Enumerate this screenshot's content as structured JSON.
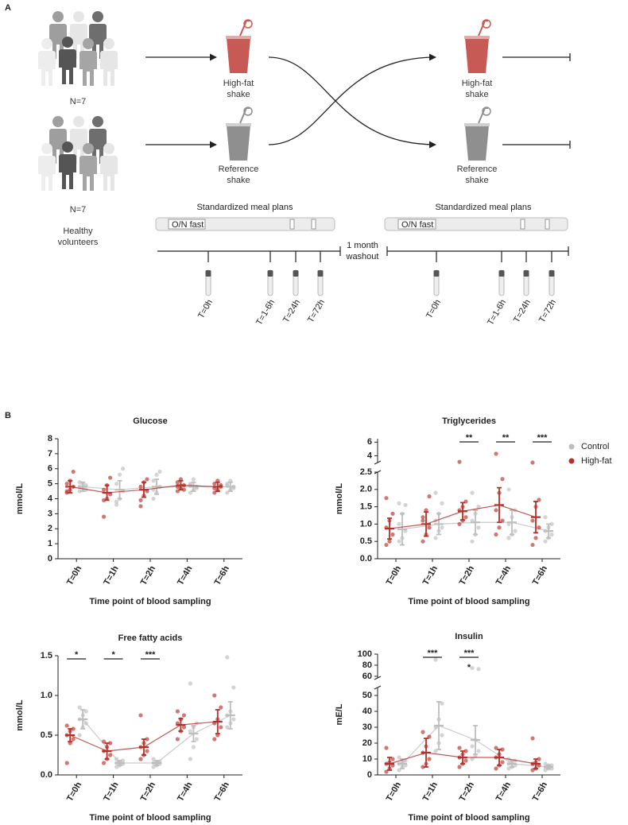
{
  "panel_a": {
    "label": "A",
    "group_size": [
      "N=7",
      "N=7"
    ],
    "population": "Healthy volunteers",
    "shakes": [
      "High-fat shake",
      "Reference shake",
      "High-fat shake",
      "Reference shake"
    ],
    "meal_plan_title": [
      "Standardized meal plans",
      "Standardized meal plans"
    ],
    "fast": [
      "O/N fast",
      "O/N fast"
    ],
    "washout": "1 month washout",
    "timepoints": [
      "T=0h",
      "T=1-6h",
      "T=24h",
      "T=72h",
      "T=0h",
      "T=1-6h",
      "T=24h",
      "T=72h"
    ]
  },
  "panel_b_label": "B",
  "chart_data": [
    {
      "type": "dot",
      "title": "Glucose",
      "ylabel": "mmol/L",
      "xlabel": "Time point of blood sampling",
      "categories": [
        "T=0h",
        "T=1h",
        "T=2h",
        "T=4h",
        "T=6h"
      ],
      "ylim": [
        0,
        8
      ],
      "yticks": [
        0,
        1,
        2,
        3,
        4,
        5,
        6,
        7,
        8
      ],
      "legend": false,
      "series": [
        {
          "name": "Control",
          "color": "#bdbdbd",
          "mean": [
            4.8,
            4.6,
            4.8,
            4.8,
            4.8
          ],
          "sd": [
            0.3,
            0.6,
            0.5,
            0.3,
            0.3
          ],
          "points": [
            [
              4.5,
              4.7,
              4.9,
              5.1,
              5.0,
              4.6,
              4.8
            ],
            [
              3.6,
              4.0,
              4.5,
              5.0,
              5.6,
              6.0,
              3.8
            ],
            [
              4.0,
              4.4,
              4.8,
              5.2,
              5.6,
              5.8,
              4.6
            ],
            [
              4.4,
              4.6,
              4.8,
              5.0,
              5.3,
              4.7,
              4.9
            ],
            [
              4.4,
              4.6,
              4.8,
              5.0,
              5.2,
              4.7,
              4.9
            ]
          ]
        },
        {
          "name": "High-fat",
          "color": "#b5302a",
          "mean": [
            4.8,
            4.4,
            4.6,
            4.9,
            4.8
          ],
          "sd": [
            0.4,
            0.5,
            0.5,
            0.3,
            0.3
          ],
          "points": [
            [
              4.4,
              4.6,
              4.8,
              5.0,
              5.2,
              5.8,
              4.5
            ],
            [
              2.8,
              4.0,
              4.3,
              4.6,
              4.9,
              5.4,
              3.9
            ],
            [
              3.9,
              4.2,
              4.5,
              4.8,
              5.1,
              5.3,
              3.5
            ],
            [
              4.5,
              4.7,
              4.9,
              5.1,
              5.3,
              4.6,
              4.8
            ],
            [
              4.4,
              4.6,
              4.8,
              5.0,
              5.2,
              4.9,
              4.7
            ]
          ]
        }
      ],
      "annotations": []
    },
    {
      "type": "dot",
      "title": "Triglycerides",
      "ylabel": "mmol/L",
      "xlabel": "Time point of blood sampling",
      "categories": [
        "T=0h",
        "T=1h",
        "T=2h",
        "T=4h",
        "T=6h"
      ],
      "ylim": [
        0,
        2.5
      ],
      "yticks": [
        {
          "value": 0,
          "label": "0.0"
        },
        0.5,
        {
          "value": 1,
          "label": "1.0"
        },
        1.5,
        {
          "value": 2,
          "label": "2.0"
        },
        2.5
      ],
      "ylim_upper": [
        3,
        6.5
      ],
      "yticks_upper": [
        4,
        6
      ],
      "legend": true,
      "legend_corner": "right",
      "series": [
        {
          "name": "Control",
          "color": "#bdbdbd",
          "mean": [
            0.85,
            1.0,
            1.05,
            1.05,
            0.8
          ],
          "sd": [
            0.45,
            0.3,
            0.35,
            0.35,
            0.2
          ],
          "points": [
            [
              0.5,
              0.6,
              0.8,
              1.0,
              1.3,
              1.55,
              1.6
            ],
            [
              0.6,
              0.8,
              0.9,
              1.1,
              1.3,
              1.6,
              1.9
            ],
            [
              0.5,
              0.7,
              0.9,
              1.1,
              1.3,
              1.5,
              1.9
            ],
            [
              0.6,
              0.7,
              0.8,
              1.0,
              1.2,
              1.4,
              2.0
            ],
            [
              0.5,
              0.6,
              0.7,
              0.8,
              0.9,
              1.0,
              1.2
            ]
          ]
        },
        {
          "name": "High-fat",
          "color": "#b5302a",
          "mean": [
            0.87,
            1.0,
            1.37,
            1.55,
            1.2
          ],
          "sd": [
            0.3,
            0.35,
            0.25,
            0.5,
            0.45
          ],
          "points": [
            [
              0.4,
              0.5,
              0.7,
              0.9,
              1.1,
              1.3,
              1.75
            ],
            [
              0.5,
              0.7,
              0.9,
              1.1,
              1.4,
              1.8,
              1.2
            ],
            [
              1.0,
              1.1,
              1.2,
              1.4,
              1.5,
              1.65,
              3.1
            ],
            [
              0.7,
              0.9,
              1.1,
              1.4,
              1.9,
              2.3,
              4.3
            ],
            [
              0.4,
              0.6,
              0.9,
              1.1,
              1.5,
              1.7,
              3.0
            ]
          ]
        }
      ],
      "annotations": [
        {
          "label": "**",
          "category": "T=2h"
        },
        {
          "label": "**",
          "category": "T=4h"
        },
        {
          "label": "***",
          "category": "T=6h"
        }
      ]
    },
    {
      "type": "dot",
      "title": "Free fatty acids",
      "ylabel": "mmol/L",
      "xlabel": "Time point of blood sampling",
      "categories": [
        "T=0h",
        "T=1h",
        "T=2h",
        "T=4h",
        "T=6h"
      ],
      "ylim": [
        0,
        1.5
      ],
      "yticks": [
        {
          "value": 0,
          "label": "0.0"
        },
        0.5,
        {
          "value": 1,
          "label": "1.0"
        },
        1.5
      ],
      "legend": false,
      "series": [
        {
          "name": "Control",
          "color": "#bdbdbd",
          "mean": [
            0.7,
            0.15,
            0.15,
            0.52,
            0.75
          ],
          "sd": [
            0.12,
            0.03,
            0.03,
            0.1,
            0.17
          ],
          "points": [
            [
              0.5,
              0.6,
              0.65,
              0.7,
              0.75,
              0.8,
              0.85
            ],
            [
              0.1,
              0.12,
              0.14,
              0.15,
              0.16,
              0.18,
              0.2
            ],
            [
              0.1,
              0.12,
              0.14,
              0.15,
              0.16,
              0.17,
              0.2
            ],
            [
              0.2,
              0.35,
              0.45,
              0.55,
              0.6,
              0.65,
              1.15
            ],
            [
              0.6,
              0.65,
              0.7,
              0.75,
              0.8,
              1.1,
              1.48
            ]
          ]
        },
        {
          "name": "High-fat",
          "color": "#b5302a",
          "mean": [
            0.5,
            0.3,
            0.35,
            0.63,
            0.67
          ],
          "sd": [
            0.08,
            0.1,
            0.1,
            0.08,
            0.15
          ],
          "points": [
            [
              0.15,
              0.4,
              0.45,
              0.5,
              0.55,
              0.58,
              0.62
            ],
            [
              0.15,
              0.2,
              0.25,
              0.3,
              0.35,
              0.4,
              0.42
            ],
            [
              0.2,
              0.25,
              0.3,
              0.35,
              0.4,
              0.45,
              0.75
            ],
            [
              0.45,
              0.55,
              0.6,
              0.65,
              0.7,
              0.75,
              0.8
            ],
            [
              0.45,
              0.5,
              0.6,
              0.65,
              0.7,
              0.85,
              1.0
            ]
          ]
        }
      ],
      "annotations": [
        {
          "label": "*",
          "category": "T=0h"
        },
        {
          "label": "*",
          "category": "T=1h"
        },
        {
          "label": "***",
          "category": "T=2h"
        }
      ]
    },
    {
      "type": "dot",
      "title": "Insulin",
      "ylabel": "mE/L",
      "xlabel": "Time point of blood sampling",
      "categories": [
        "T=0h",
        "T=1h",
        "T=2h",
        "T=4h",
        "T=6h"
      ],
      "ylim": [
        0,
        55
      ],
      "yticks": [
        0,
        10,
        20,
        30,
        40,
        50
      ],
      "ylim_upper": [
        57,
        100
      ],
      "yticks_upper": [
        60,
        80,
        100
      ],
      "legend": false,
      "series": [
        {
          "name": "Control",
          "color": "#bdbdbd",
          "mean": [
            7,
            31,
            22,
            7,
            5
          ],
          "sd": [
            3,
            15,
            9,
            2,
            1
          ],
          "points": [
            [
              3,
              5,
              6,
              7,
              8,
              9,
              11
            ],
            [
              15,
              20,
              25,
              30,
              35,
              45,
              90
            ],
            [
              10,
              12,
              15,
              18,
              22,
              73,
              75
            ],
            [
              4,
              5,
              6,
              7,
              8,
              9,
              10
            ],
            [
              3,
              4,
              4,
              5,
              6,
              6,
              7
            ]
          ]
        },
        {
          "name": "High-fat",
          "color": "#b5302a",
          "mean": [
            7,
            14,
            11,
            11,
            7
          ],
          "sd": [
            4,
            9,
            4,
            5,
            3
          ],
          "points": [
            [
              2,
              4,
              6,
              7,
              8,
              10,
              17
            ],
            [
              5,
              7,
              10,
              14,
              18,
              24,
              27
            ],
            [
              5,
              7,
              9,
              11,
              13,
              15,
              17
            ],
            [
              4,
              6,
              8,
              11,
              13,
              16,
              17
            ],
            [
              3,
              4,
              6,
              7,
              8,
              10,
              23
            ]
          ]
        }
      ],
      "annotations": [
        {
          "label": "***",
          "category": "T=1h"
        },
        {
          "label": "***",
          "category": "T=2h"
        },
        {
          "label": "*",
          "category": "T=2h",
          "bracket": false
        }
      ]
    }
  ]
}
